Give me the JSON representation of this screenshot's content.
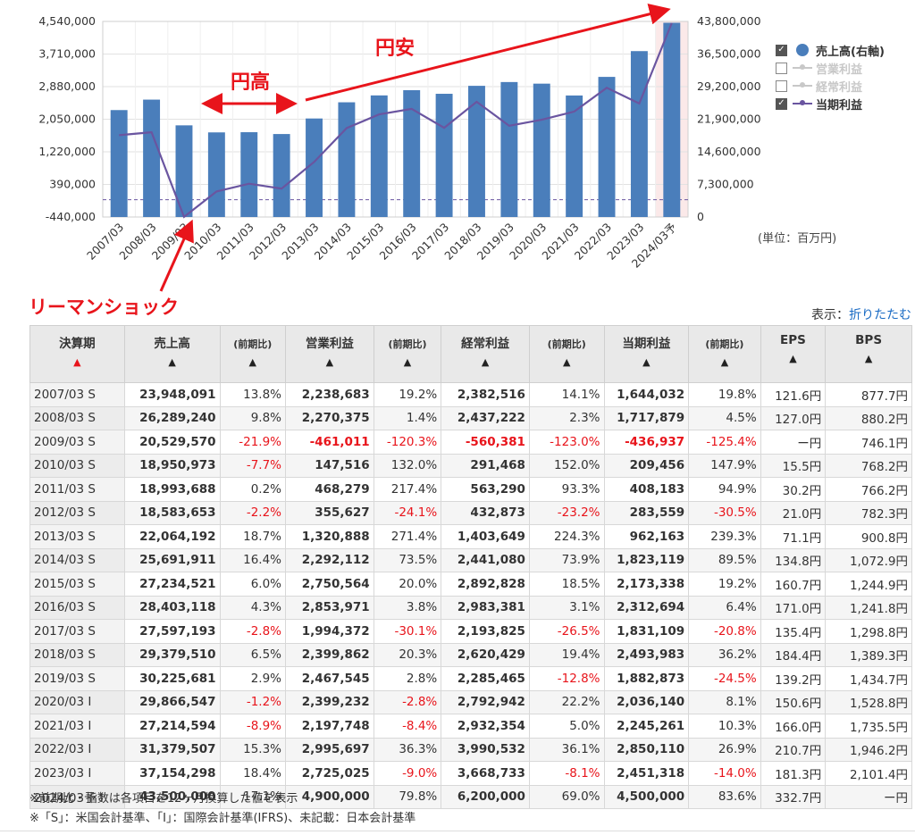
{
  "chart_data": {
    "type": "bar",
    "categories": [
      "2007/03",
      "2008/03",
      "2009/03",
      "2010/03",
      "2011/03",
      "2012/03",
      "2013/03",
      "2014/03",
      "2015/03",
      "2016/03",
      "2017/03",
      "2018/03",
      "2019/03",
      "2020/03",
      "2021/03",
      "2022/03",
      "2023/03",
      "2024/03予"
    ],
    "series": [
      {
        "name": "売上高(右軸)",
        "axis": "right",
        "kind": "bar",
        "color": "#4a7ebb",
        "values": [
          23948091,
          26289240,
          20529570,
          18950973,
          18993688,
          18583653,
          22064192,
          25691911,
          27234521,
          28403118,
          27597193,
          29379510,
          30225681,
          29866547,
          27214594,
          31379507,
          37154298,
          43500000
        ]
      },
      {
        "name": "営業利益",
        "axis": "left",
        "kind": "line",
        "visible": false,
        "values": [
          2238683,
          2270375,
          -461011,
          147516,
          468279,
          355627,
          1320888,
          2292112,
          2750564,
          2853971,
          1994372,
          2399862,
          2467545,
          2399232,
          2197748,
          2995697,
          2725025,
          4900000
        ]
      },
      {
        "name": "経常利益",
        "axis": "left",
        "kind": "line",
        "visible": false,
        "values": [
          2382516,
          2437222,
          -560381,
          291468,
          563290,
          432873,
          1403649,
          2441080,
          2892828,
          2983381,
          2193825,
          2620429,
          2285465,
          2792942,
          2932354,
          3990532,
          3668733,
          6200000
        ]
      },
      {
        "name": "当期利益",
        "axis": "left",
        "kind": "line",
        "color": "#6a55a0",
        "values": [
          1644032,
          1717879,
          -436937,
          209456,
          408183,
          283559,
          962163,
          1823119,
          2173338,
          2312694,
          1831109,
          2493983,
          1882873,
          2036140,
          2245261,
          2850110,
          2451318,
          4500000
        ]
      }
    ],
    "left_ticks": [
      "4,540,000",
      "3,710,000",
      "2,880,000",
      "2,050,000",
      "1,220,000",
      "390,000",
      "-440,000"
    ],
    "right_ticks": [
      "43,800,000",
      "36,500,000",
      "29,200,000",
      "21,900,000",
      "14,600,000",
      "7,300,000",
      "0"
    ],
    "ylim_left": [
      -440000,
      4540000
    ],
    "ylim_right": [
      0,
      43800000
    ],
    "grid": true,
    "legend_position": "right"
  },
  "legend": {
    "items": [
      {
        "label": "売上高(右軸)",
        "checked": true,
        "symbol": "dot",
        "color": "#4a7ebb"
      },
      {
        "label": "営業利益",
        "checked": false,
        "symbol": "line",
        "color": "#c8c8c8"
      },
      {
        "label": "経常利益",
        "checked": false,
        "symbol": "line",
        "color": "#c8c8c8"
      },
      {
        "label": "当期利益",
        "checked": true,
        "symbol": "line",
        "color": "#6a55a0"
      }
    ]
  },
  "unit_label": "(単位：百万円)",
  "annotations": {
    "yen_strong": "円高",
    "yen_weak": "円安",
    "lehman": "リーマンショック",
    "color": "#e8141b"
  },
  "display_toggle": {
    "label": "表示：",
    "link": "折りたたむ"
  },
  "table": {
    "headers": [
      "決算期",
      "売上高",
      "(前期比)",
      "営業利益",
      "(前期比)",
      "経常利益",
      "(前期比)",
      "当期利益",
      "(前期比)",
      "EPS",
      "BPS"
    ],
    "rows": [
      [
        "2007/03 S",
        "23,948,091",
        "13.8%",
        "2,238,683",
        "19.2%",
        "2,382,516",
        "14.1%",
        "1,644,032",
        "19.8%",
        "121.6円",
        "877.7円"
      ],
      [
        "2008/03 S",
        "26,289,240",
        "9.8%",
        "2,270,375",
        "1.4%",
        "2,437,222",
        "2.3%",
        "1,717,879",
        "4.5%",
        "127.0円",
        "880.2円"
      ],
      [
        "2009/03 S",
        "20,529,570",
        "-21.9%",
        "-461,011",
        "-120.3%",
        "-560,381",
        "-123.0%",
        "-436,937",
        "-125.4%",
        "ー円",
        "746.1円"
      ],
      [
        "2010/03 S",
        "18,950,973",
        "-7.7%",
        "147,516",
        "132.0%",
        "291,468",
        "152.0%",
        "209,456",
        "147.9%",
        "15.5円",
        "768.2円"
      ],
      [
        "2011/03 S",
        "18,993,688",
        "0.2%",
        "468,279",
        "217.4%",
        "563,290",
        "93.3%",
        "408,183",
        "94.9%",
        "30.2円",
        "766.2円"
      ],
      [
        "2012/03 S",
        "18,583,653",
        "-2.2%",
        "355,627",
        "-24.1%",
        "432,873",
        "-23.2%",
        "283,559",
        "-30.5%",
        "21.0円",
        "782.3円"
      ],
      [
        "2013/03 S",
        "22,064,192",
        "18.7%",
        "1,320,888",
        "271.4%",
        "1,403,649",
        "224.3%",
        "962,163",
        "239.3%",
        "71.1円",
        "900.8円"
      ],
      [
        "2014/03 S",
        "25,691,911",
        "16.4%",
        "2,292,112",
        "73.5%",
        "2,441,080",
        "73.9%",
        "1,823,119",
        "89.5%",
        "134.8円",
        "1,072.9円"
      ],
      [
        "2015/03 S",
        "27,234,521",
        "6.0%",
        "2,750,564",
        "20.0%",
        "2,892,828",
        "18.5%",
        "2,173,338",
        "19.2%",
        "160.7円",
        "1,244.9円"
      ],
      [
        "2016/03 S",
        "28,403,118",
        "4.3%",
        "2,853,971",
        "3.8%",
        "2,983,381",
        "3.1%",
        "2,312,694",
        "6.4%",
        "171.0円",
        "1,241.8円"
      ],
      [
        "2017/03 S",
        "27,597,193",
        "-2.8%",
        "1,994,372",
        "-30.1%",
        "2,193,825",
        "-26.5%",
        "1,831,109",
        "-20.8%",
        "135.4円",
        "1,298.8円"
      ],
      [
        "2018/03 S",
        "29,379,510",
        "6.5%",
        "2,399,862",
        "20.3%",
        "2,620,429",
        "19.4%",
        "2,493,983",
        "36.2%",
        "184.4円",
        "1,389.3円"
      ],
      [
        "2019/03 S",
        "30,225,681",
        "2.9%",
        "2,467,545",
        "2.8%",
        "2,285,465",
        "-12.8%",
        "1,882,873",
        "-24.5%",
        "139.2円",
        "1,434.7円"
      ],
      [
        "2020/03 I",
        "29,866,547",
        "-1.2%",
        "2,399,232",
        "-2.8%",
        "2,792,942",
        "22.2%",
        "2,036,140",
        "8.1%",
        "150.6円",
        "1,528.8円"
      ],
      [
        "2021/03 I",
        "27,214,594",
        "-8.9%",
        "2,197,748",
        "-8.4%",
        "2,932,354",
        "5.0%",
        "2,245,261",
        "10.3%",
        "166.0円",
        "1,735.5円"
      ],
      [
        "2022/03 I",
        "31,379,507",
        "15.3%",
        "2,995,697",
        "36.3%",
        "3,990,532",
        "36.1%",
        "2,850,110",
        "26.9%",
        "210.7円",
        "1,946.2円"
      ],
      [
        "2023/03 I",
        "37,154,298",
        "18.4%",
        "2,725,025",
        "-9.0%",
        "3,668,733",
        "-8.1%",
        "2,451,318",
        "-14.0%",
        "181.3円",
        "2,101.4円"
      ],
      [
        "2024/03予 I",
        "43,500,000",
        "17.1%",
        "4,900,000",
        "79.8%",
        "6,200,000",
        "69.0%",
        "4,500,000",
        "83.6%",
        "332.7円",
        "ー円"
      ]
    ]
  },
  "notes": [
    "※前期比・指数は各項目を12ヶ月換算した値を表示",
    "※「S」：米国会計基準、「I」：国際会計基準(IFRS)、未記載：日本会計基準"
  ]
}
